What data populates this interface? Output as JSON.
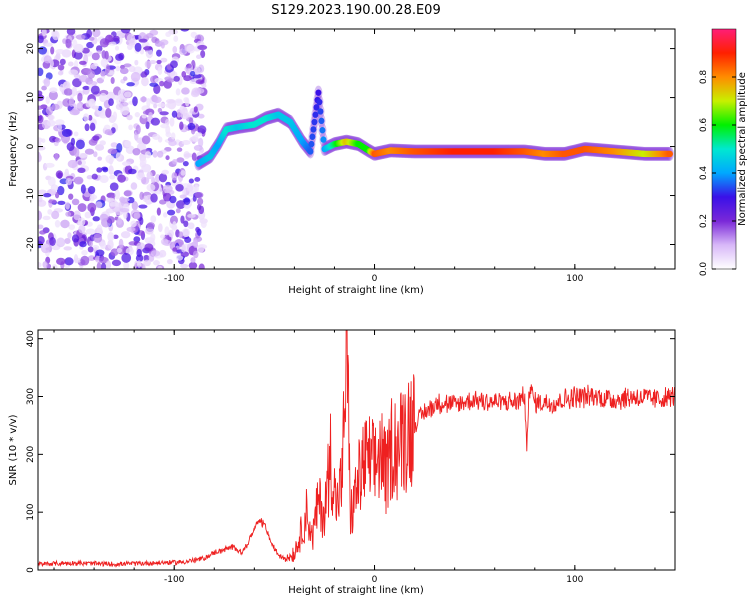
{
  "title": "S129.2023.190.00.28.E09",
  "chart_data": [
    {
      "type": "heatmap",
      "xlabel": "Height of straight line (km)",
      "ylabel": "Frequency (Hz)",
      "xlim": [
        -168,
        150
      ],
      "ylim": [
        -25,
        24
      ],
      "xticks": [
        -100,
        0,
        100
      ],
      "yticks": [
        -20,
        -10,
        0,
        10,
        20
      ],
      "colorbar": {
        "label": "Normalized spectral amplitude",
        "range": [
          0,
          1
        ],
        "ticks": [
          "0.0",
          "0.2",
          "0.4",
          "0.6",
          "0.8"
        ],
        "tick_values": [
          0.0,
          0.2,
          0.4,
          0.6,
          0.8
        ],
        "colors": [
          "#ffffff",
          "#d8b8f8",
          "#7a28d8",
          "#3a10e8",
          "#00a8ff",
          "#00e8d0",
          "#00f000",
          "#c8f000",
          "#ff8c00",
          "#ff2000",
          "#ff1e78"
        ]
      },
      "noise_region": {
        "x": [
          -168,
          -85
        ],
        "y": [
          -25,
          24
        ],
        "level": 0.15
      },
      "ridge": [
        {
          "x": -88,
          "y": -3.5,
          "a": 0.4
        },
        {
          "x": -82,
          "y": -2.0,
          "a": 0.45
        },
        {
          "x": -78,
          "y": 0.5,
          "a": 0.4
        },
        {
          "x": -74,
          "y": 3.5,
          "a": 0.5
        },
        {
          "x": -68,
          "y": 4.0,
          "a": 0.45
        },
        {
          "x": -60,
          "y": 4.5,
          "a": 0.5
        },
        {
          "x": -54,
          "y": 5.8,
          "a": 0.5
        },
        {
          "x": -48,
          "y": 6.5,
          "a": 0.45
        },
        {
          "x": -42,
          "y": 5.0,
          "a": 0.45
        },
        {
          "x": -36,
          "y": 1.0,
          "a": 0.4
        },
        {
          "x": -32,
          "y": -1.0,
          "a": 0.35
        },
        {
          "x": -28,
          "y": 11.0,
          "a": 0.3
        },
        {
          "x": -25,
          "y": -0.5,
          "a": 0.4
        },
        {
          "x": -20,
          "y": 0.5,
          "a": 0.55
        },
        {
          "x": -14,
          "y": 1.0,
          "a": 0.75
        },
        {
          "x": -8,
          "y": 0.5,
          "a": 0.6
        },
        {
          "x": -3,
          "y": -0.8,
          "a": 0.6
        },
        {
          "x": 0,
          "y": -1.5,
          "a": 0.85
        },
        {
          "x": 8,
          "y": -0.8,
          "a": 0.8
        },
        {
          "x": 20,
          "y": -1.0,
          "a": 0.85
        },
        {
          "x": 40,
          "y": -1.0,
          "a": 0.9
        },
        {
          "x": 60,
          "y": -1.0,
          "a": 0.9
        },
        {
          "x": 75,
          "y": -1.0,
          "a": 0.85
        },
        {
          "x": 85,
          "y": -1.5,
          "a": 0.8
        },
        {
          "x": 95,
          "y": -1.5,
          "a": 0.85
        },
        {
          "x": 105,
          "y": -0.5,
          "a": 0.85
        },
        {
          "x": 120,
          "y": -1.0,
          "a": 0.8
        },
        {
          "x": 135,
          "y": -1.5,
          "a": 0.7
        },
        {
          "x": 148,
          "y": -1.5,
          "a": 0.85
        }
      ]
    },
    {
      "type": "line",
      "xlabel": "Height of straight line (km)",
      "ylabel": "SNR (10 * v/v)",
      "xlim": [
        -168,
        150
      ],
      "ylim": [
        0,
        415
      ],
      "xticks": [
        -100,
        0,
        100
      ],
      "yticks": [
        0,
        100,
        200,
        300,
        400
      ],
      "series": [
        {
          "color": "#ee2020",
          "x": [
            -168,
            -150,
            -130,
            -110,
            -95,
            -85,
            -80,
            -75,
            -70,
            -66,
            -62,
            -58,
            -55,
            -52,
            -48,
            -44,
            -40,
            -37,
            -34,
            -31,
            -28,
            -25,
            -22,
            -19,
            -16,
            -14,
            -12,
            -9,
            -6,
            -3,
            0,
            3,
            6,
            9,
            12,
            15,
            18,
            21,
            24,
            28,
            32,
            40,
            50,
            60,
            70,
            75,
            76,
            77,
            80,
            90,
            100,
            110,
            120,
            130,
            140,
            150
          ],
          "y": [
            10,
            12,
            10,
            12,
            14,
            20,
            30,
            35,
            40,
            30,
            55,
            85,
            80,
            50,
            25,
            20,
            30,
            60,
            100,
            55,
            120,
            95,
            200,
            110,
            160,
            415,
            90,
            140,
            180,
            190,
            175,
            210,
            160,
            225,
            210,
            240,
            250,
            255,
            270,
            280,
            290,
            285,
            295,
            290,
            290,
            300,
            195,
            320,
            290,
            290,
            300,
            300,
            295,
            300,
            295,
            300
          ]
        }
      ]
    }
  ]
}
